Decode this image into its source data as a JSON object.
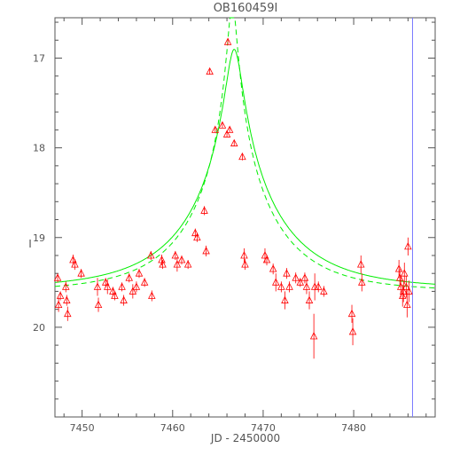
{
  "chart_data": {
    "type": "scatter",
    "title": "OB160459I",
    "xlabel": "JD - 2450000",
    "ylabel": "I",
    "xlim": [
      7447.0,
      7489.0
    ],
    "ylim": [
      21.0,
      16.55
    ],
    "y_axis_inverted": true,
    "xticks": [
      7450,
      7460,
      7470,
      7480
    ],
    "yticks": [
      17,
      18,
      19,
      20
    ],
    "grid": false,
    "legend": "none",
    "colors": {
      "points": "#ff0000",
      "model": "#00ee00",
      "vline": "#7777ff",
      "axes": "#555555"
    },
    "series": [
      {
        "marker": "triangle-open",
        "x": [
          7447.3,
          7447.6,
          7447.4,
          7448.2,
          7448.3,
          7448.4,
          7449.0,
          7449.2,
          7449.9,
          7451.7,
          7451.8,
          7452.6,
          7452.8,
          7453.4,
          7453.6,
          7454.4,
          7454.6,
          7455.2,
          7455.6,
          7456.0,
          7456.3,
          7456.9,
          7457.6,
          7457.7,
          7458.8,
          7458.9,
          7460.3,
          7460.5,
          7461.0,
          7461.7,
          7462.5,
          7462.7,
          7463.5,
          7463.7,
          7464.1,
          7464.7,
          7465.5,
          7466.0,
          7466.1,
          7466.3,
          7466.8,
          7467.7,
          7467.9,
          7468.0,
          7470.2,
          7470.4,
          7471.1,
          7471.4,
          7472.0,
          7472.4,
          7472.6,
          7472.9,
          7473.6,
          7474.1,
          7474.6,
          7474.8,
          7475.1,
          7475.6,
          7475.7,
          7476.1,
          7476.7,
          7479.8,
          7479.9,
          7480.8,
          7480.9,
          7485.0,
          7485.1,
          7485.2,
          7485.4,
          7485.5,
          7485.6,
          7485.8,
          7485.9,
          7486.0,
          7486.1
        ],
        "y": [
          19.45,
          19.65,
          19.75,
          19.55,
          19.7,
          19.85,
          19.25,
          19.3,
          19.4,
          19.55,
          19.75,
          19.5,
          19.55,
          19.6,
          19.65,
          19.55,
          19.7,
          19.45,
          19.6,
          19.55,
          19.4,
          19.5,
          19.2,
          19.65,
          19.25,
          19.3,
          19.2,
          19.3,
          19.25,
          19.3,
          18.95,
          19.0,
          18.7,
          19.15,
          17.15,
          17.8,
          17.75,
          17.85,
          16.82,
          17.8,
          17.95,
          18.1,
          19.2,
          19.3,
          19.2,
          19.25,
          19.35,
          19.5,
          19.55,
          19.7,
          19.4,
          19.55,
          19.45,
          19.5,
          19.45,
          19.55,
          19.7,
          20.1,
          19.55,
          19.55,
          19.6,
          19.85,
          20.05,
          19.3,
          19.5,
          19.35,
          19.45,
          19.55,
          19.65,
          19.6,
          19.4,
          19.55,
          19.75,
          19.1,
          19.6
        ],
        "err": [
          0.05,
          0.05,
          0.08,
          0.06,
          0.06,
          0.08,
          0.06,
          0.06,
          0.05,
          0.1,
          0.08,
          0.05,
          0.08,
          0.05,
          0.05,
          0.05,
          0.06,
          0.05,
          0.08,
          0.06,
          0.05,
          0.05,
          0.05,
          0.06,
          0.06,
          0.05,
          0.05,
          0.08,
          0.05,
          0.05,
          0.05,
          0.05,
          0.05,
          0.06,
          0.03,
          0.03,
          0.03,
          0.03,
          0.03,
          0.03,
          0.03,
          0.04,
          0.08,
          0.06,
          0.08,
          0.06,
          0.06,
          0.1,
          0.06,
          0.1,
          0.06,
          0.06,
          0.06,
          0.05,
          0.06,
          0.08,
          0.1,
          0.25,
          0.15,
          0.06,
          0.06,
          0.1,
          0.15,
          0.1,
          0.1,
          0.1,
          0.1,
          0.12,
          0.12,
          0.12,
          0.12,
          0.12,
          0.14,
          0.1,
          0.12
        ]
      }
    ],
    "model_solid": {
      "baseline": 19.57,
      "peak_time": 7466.8,
      "peak_mag": 16.82,
      "tE": 10.5,
      "style": "solid"
    },
    "model_dashed": {
      "baseline": 19.6,
      "peak_time": 7466.6,
      "peak_mag": 16.35,
      "tE": 9.5,
      "style": "dashed"
    },
    "vline_x": 7486.5
  }
}
